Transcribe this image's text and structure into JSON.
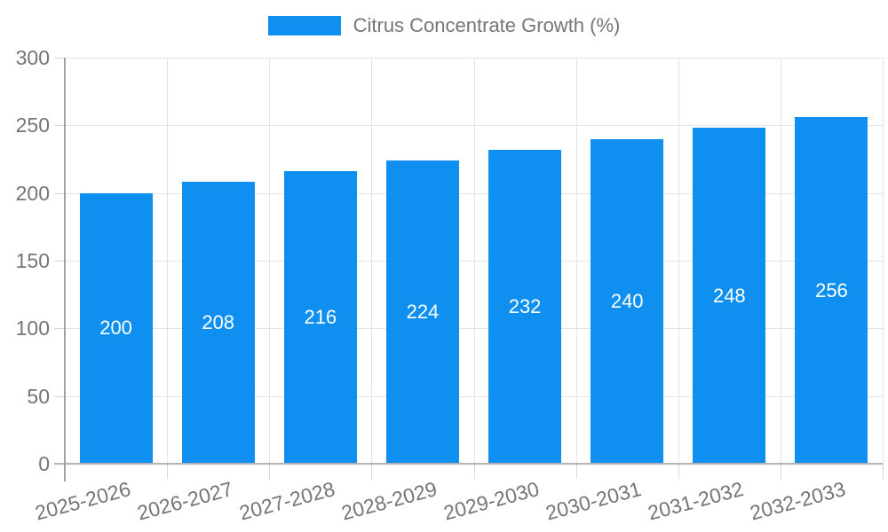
{
  "legend": {
    "label": "Citrus Concentrate Growth (%)"
  },
  "chart_data": {
    "type": "bar",
    "title": "",
    "series": [
      {
        "name": "Citrus Concentrate Growth (%)",
        "values": [
          200,
          208,
          216,
          224,
          232,
          240,
          248,
          256
        ]
      }
    ],
    "categories": [
      "2025-2026",
      "2026-2027",
      "2027-2028",
      "2028-2029",
      "2029-2030",
      "2030-2031",
      "2031-2032",
      "2032-2033"
    ],
    "values": [
      200,
      208,
      216,
      224,
      232,
      240,
      248,
      256
    ],
    "xlabel": "",
    "ylabel": "",
    "ylim": [
      0,
      300
    ],
    "yticks": [
      0,
      50,
      100,
      150,
      200,
      250,
      300
    ],
    "grid": true,
    "legend_position": "top-center",
    "value_labels": "inside-center",
    "x_label_rotation_deg": -15,
    "colors": {
      "bar": "#0f90f0",
      "axis_text": "#757575",
      "value_label_text": "#ffffff",
      "grid_line": "#e3e3e3",
      "y_axis_line": "#a3a3a3",
      "x_axis_line": "#b3b3b3",
      "background": "#ffffff"
    }
  }
}
